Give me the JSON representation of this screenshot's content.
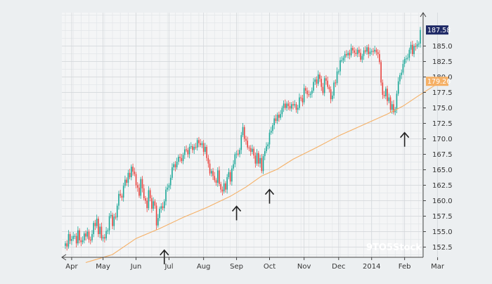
{
  "chart_data": {
    "type": "candlestick",
    "title": "",
    "xlabel": "",
    "ylabel": "",
    "ylim": [
      150.0,
      190.0
    ],
    "y_ticks": [
      152.5,
      155.0,
      157.5,
      160.0,
      162.5,
      165.0,
      167.5,
      170.0,
      172.5,
      175.0,
      177.5,
      180.0,
      182.5,
      185.0
    ],
    "x_ticks": [
      "Apr",
      "May",
      "Jun",
      "Jul",
      "Aug",
      "Sep",
      "Oct",
      "Nov",
      "Dec",
      "2014",
      "Feb",
      "Mar"
    ],
    "x_tick_positions": [
      4,
      24,
      45,
      66,
      88,
      109,
      130,
      152,
      174,
      195,
      216,
      237
    ],
    "grid": true,
    "colors": {
      "up": "#1aa697",
      "down": "#e8433e",
      "moving_average": "#f5b066",
      "last_price_bg": "#1f2a66",
      "ma_label_bg": "#f5b066",
      "axis": "#444444",
      "grid": "#d4d7db"
    },
    "series": [
      {
        "name": "price",
        "kind": "ohlc",
        "close": [
          153.1,
          152.6,
          154.6,
          153.5,
          153.8,
          154.3,
          154.3,
          153.1,
          155.2,
          153.6,
          153.3,
          153.6,
          154.7,
          154.2,
          155.0,
          153.7,
          153.6,
          154.6,
          156.4,
          155.9,
          157.1,
          154.6,
          155.8,
          153.9,
          154.1,
          153.9,
          155.1,
          155.2,
          157.5,
          157.7,
          155.9,
          157.4,
          157.3,
          159.2,
          161.1,
          160.8,
          160.5,
          162.4,
          163.4,
          162.9,
          164.5,
          163.8,
          165.5,
          164.7,
          164.3,
          162.5,
          162.1,
          160.8,
          163.5,
          162.0,
          160.4,
          160.0,
          158.8,
          161.7,
          160.4,
          158.7,
          159.9,
          159.2,
          156.0,
          157.2,
          158.7,
          159.1,
          158.8,
          159.9,
          161.8,
          162.1,
          162.5,
          163.7,
          165.4,
          165.9,
          165.4,
          166.3,
          167.1,
          166.9,
          166.4,
          167.4,
          168.3,
          168.2,
          167.5,
          168.7,
          168.8,
          168.2,
          168.7,
          168.6,
          169.8,
          169.3,
          169.0,
          169.3,
          167.9,
          168.7,
          166.9,
          166.0,
          164.4,
          164.8,
          164.0,
          163.3,
          162.9,
          164.9,
          162.7,
          161.8,
          161.5,
          162.8,
          161.8,
          163.8,
          164.6,
          163.1,
          165.2,
          165.9,
          167.5,
          167.6,
          167.5,
          168.2,
          170.6,
          171.9,
          170.0,
          169.7,
          168.6,
          168.5,
          167.9,
          168.4,
          167.3,
          166.0,
          167.7,
          166.0,
          166.9,
          164.8,
          167.2,
          168.0,
          168.8,
          169.1,
          171.0,
          171.3,
          172.2,
          173.3,
          172.9,
          173.9,
          173.4,
          174.0,
          175.0,
          175.7,
          175.0,
          175.7,
          175.3,
          174.9,
          175.6,
          175.4,
          175.6,
          174.7,
          175.0,
          176.7,
          176.6,
          175.9,
          178.2,
          177.8,
          177.2,
          177.1,
          177.3,
          177.8,
          179.2,
          179.6,
          178.9,
          180.4,
          179.7,
          178.4,
          177.4,
          179.8,
          179.4,
          178.4,
          178.0,
          176.4,
          177.0,
          179.1,
          179.0,
          180.9,
          180.9,
          182.7,
          182.7,
          183.1,
          183.7,
          183.5,
          183.9,
          183.5,
          184.7,
          184.3,
          183.9,
          183.7,
          184.4,
          183.9,
          182.8,
          183.4,
          184.3,
          184.1,
          184.8,
          183.7,
          184.1,
          184.2,
          184.1,
          184.4,
          184.0,
          183.7,
          182.4,
          179.1,
          177.1,
          176.9,
          178.1,
          176.1,
          176.7,
          174.7,
          175.6,
          174.3,
          174.8,
          177.3,
          179.3,
          180.3,
          180.7,
          182.1,
          182.9,
          183.0,
          183.1,
          184.4,
          185.2,
          183.7,
          185.0,
          184.9,
          185.3,
          185.4,
          187.6
        ]
      },
      {
        "name": "moving_average",
        "kind": "line",
        "points": [
          [
            13,
            150.0
          ],
          [
            30,
            151.3
          ],
          [
            45,
            153.9
          ],
          [
            60,
            155.5
          ],
          [
            75,
            157.3
          ],
          [
            90,
            158.9
          ],
          [
            105,
            160.7
          ],
          [
            115,
            162.2
          ],
          [
            125,
            164.0
          ],
          [
            135,
            165.1
          ],
          [
            145,
            166.7
          ],
          [
            160,
            168.6
          ],
          [
            175,
            170.6
          ],
          [
            190,
            172.3
          ],
          [
            205,
            174.0
          ],
          [
            215,
            175.3
          ],
          [
            225,
            177.0
          ],
          [
            235,
            178.6
          ],
          [
            240,
            179.3
          ]
        ]
      }
    ],
    "last_price_label": "187.58",
    "ma_label": "179.26",
    "annotations": [
      {
        "type": "arrow-up",
        "index": 63,
        "value": 152.0
      },
      {
        "type": "arrow-up",
        "index": 109,
        "value": 159.1
      },
      {
        "type": "arrow-up",
        "index": 130,
        "value": 161.8
      },
      {
        "type": "arrow-up",
        "index": 216,
        "value": 171.0
      }
    ]
  },
  "watermark": "9TO5Stock"
}
